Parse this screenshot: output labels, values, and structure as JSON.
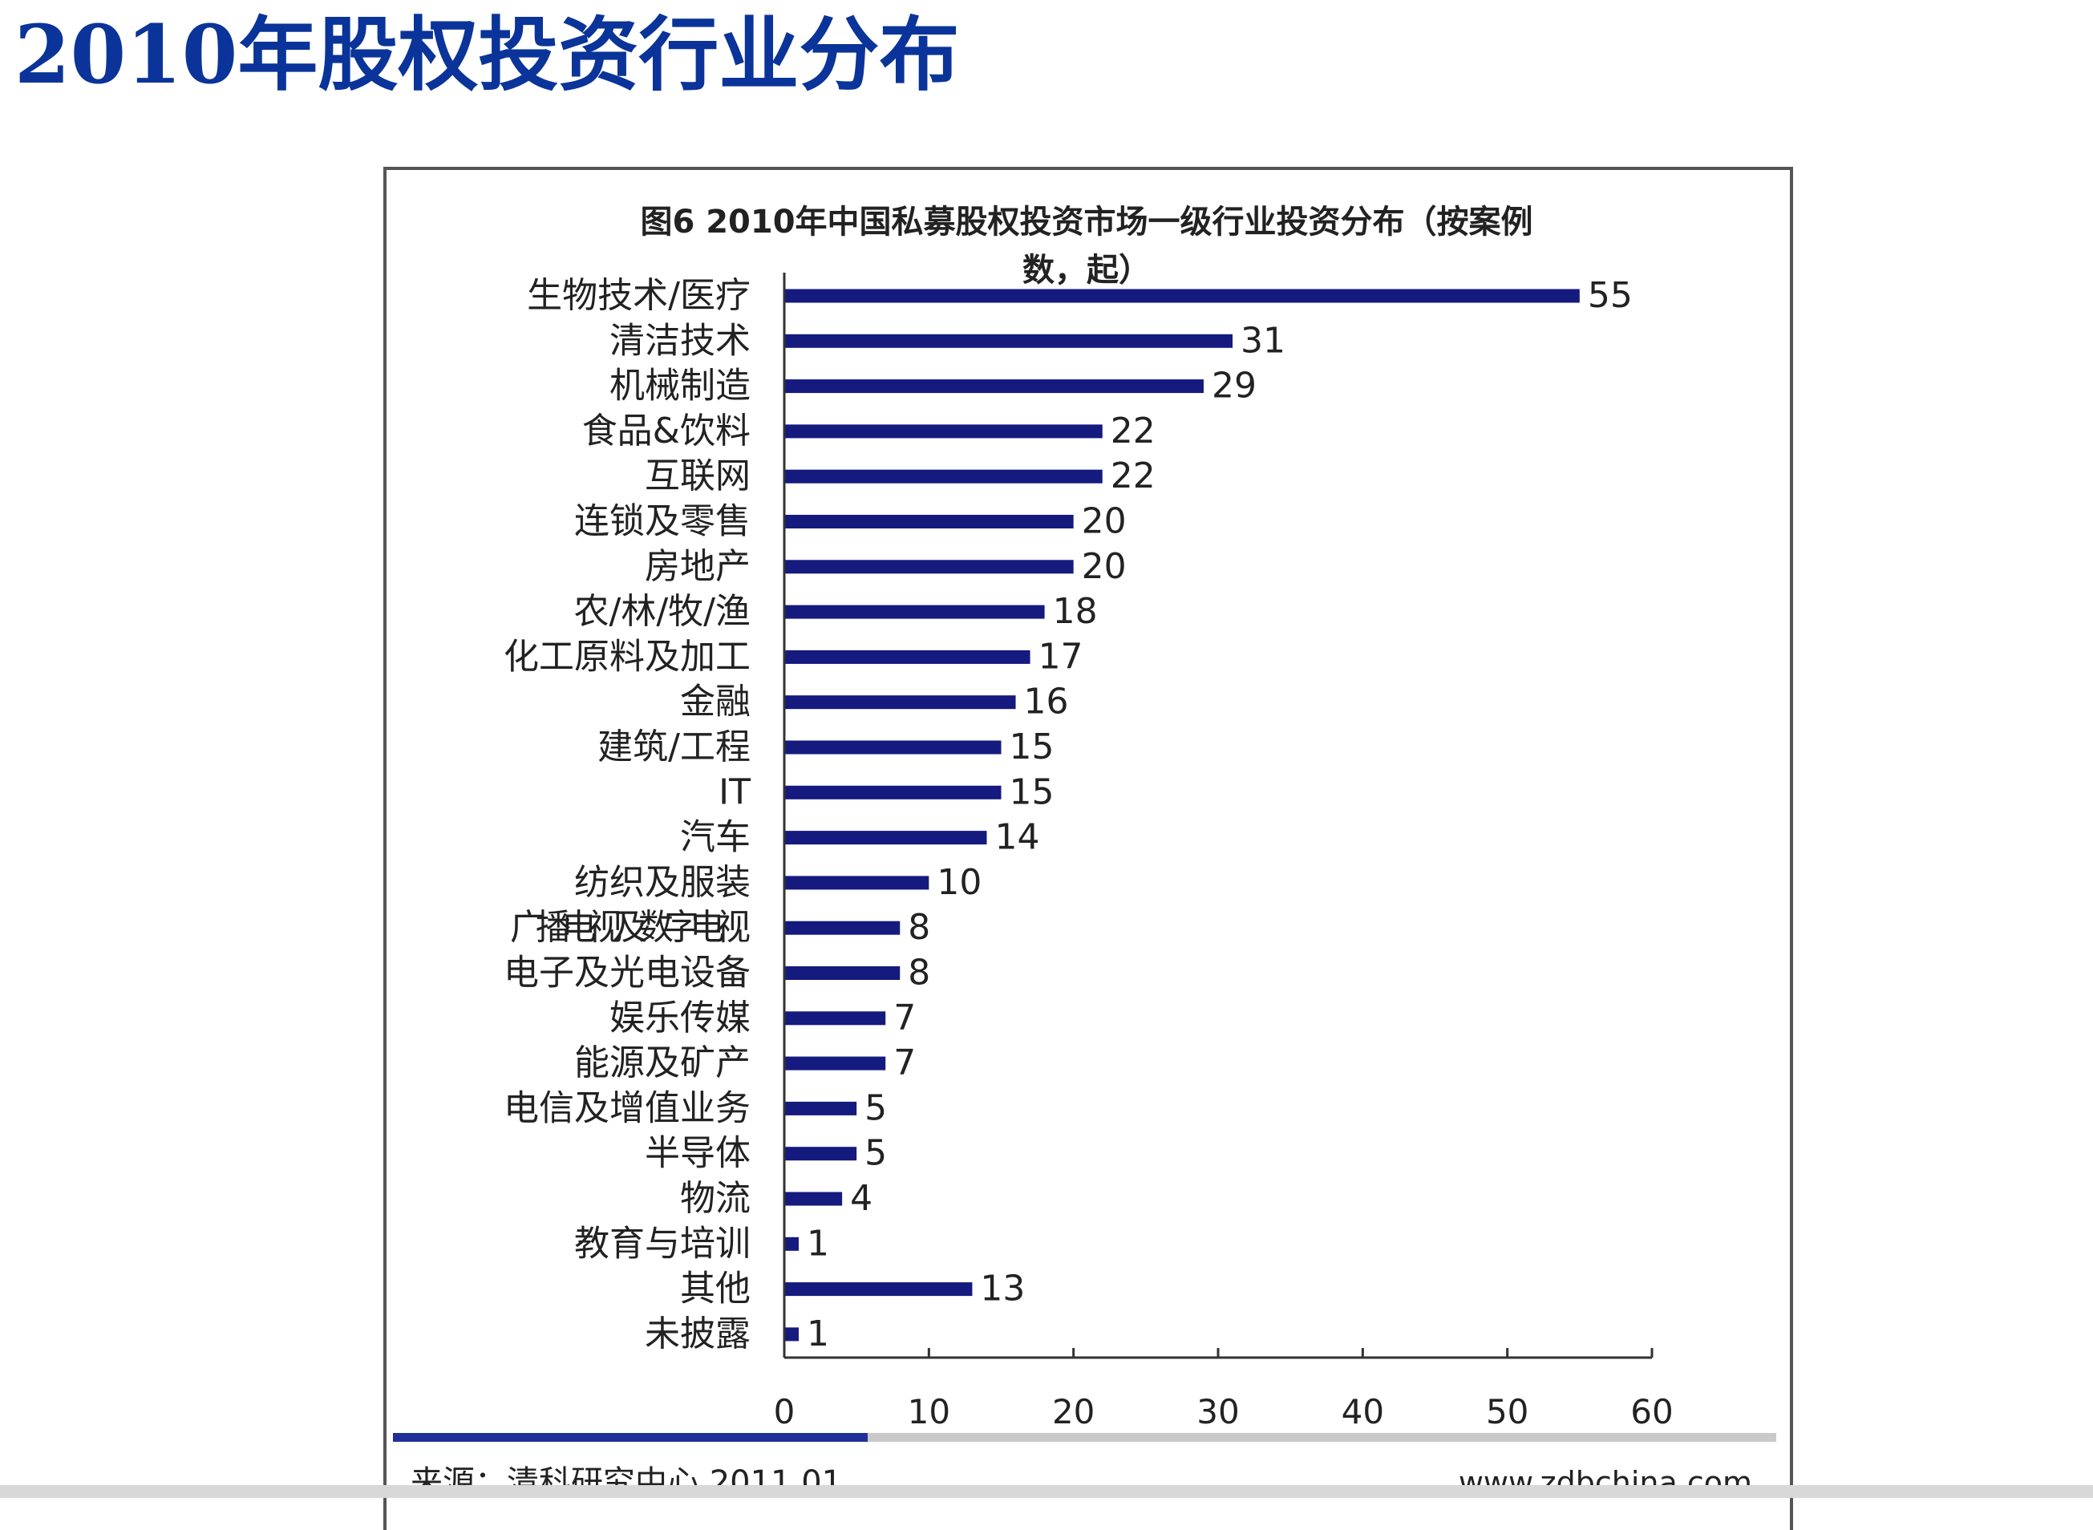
{
  "page_title": "2010年股权投资行业分布",
  "colors": {
    "title": "#0a3499",
    "bar": "#141a7e",
    "axis": "#333333",
    "text": "#222222",
    "source_rule_accent": "#1f2f9a",
    "source_rule_base": "#c9c9c9"
  },
  "chart_data": {
    "type": "bar",
    "orientation": "horizontal",
    "title": "图6 2010年中国私募股权投资市场一级行业投资分布（按案例数，起）",
    "xlabel": "",
    "ylabel": "",
    "xlim": [
      0,
      60
    ],
    "x_ticks": [
      "0",
      "10",
      "20",
      "30",
      "40",
      "50",
      "60"
    ],
    "categories": [
      "生物技术/医疗",
      "清洁技术",
      "机械制造",
      "食品&饮料",
      "互联网",
      "连锁及零售",
      "房地产",
      "农/林/牧/渔",
      "化工原料及加工",
      "金融",
      "建筑/工程",
      "IT",
      "汽车",
      "纺织及服装",
      "广播电视及数字电视",
      "电子及光电设备",
      "娱乐传媒",
      "能源及矿产",
      "电信及增值业务",
      "半导体",
      "物流",
      "教育与培训",
      "其他",
      "未披露"
    ],
    "values": [
      55,
      31,
      29,
      22,
      22,
      20,
      20,
      18,
      17,
      16,
      15,
      15,
      14,
      10,
      8,
      8,
      7,
      7,
      5,
      5,
      4,
      1,
      13,
      1
    ],
    "grid": false,
    "legend": "none"
  },
  "source": {
    "left": "来源：清科研究中心 2011.01",
    "right": "www.zdbchina.com"
  }
}
